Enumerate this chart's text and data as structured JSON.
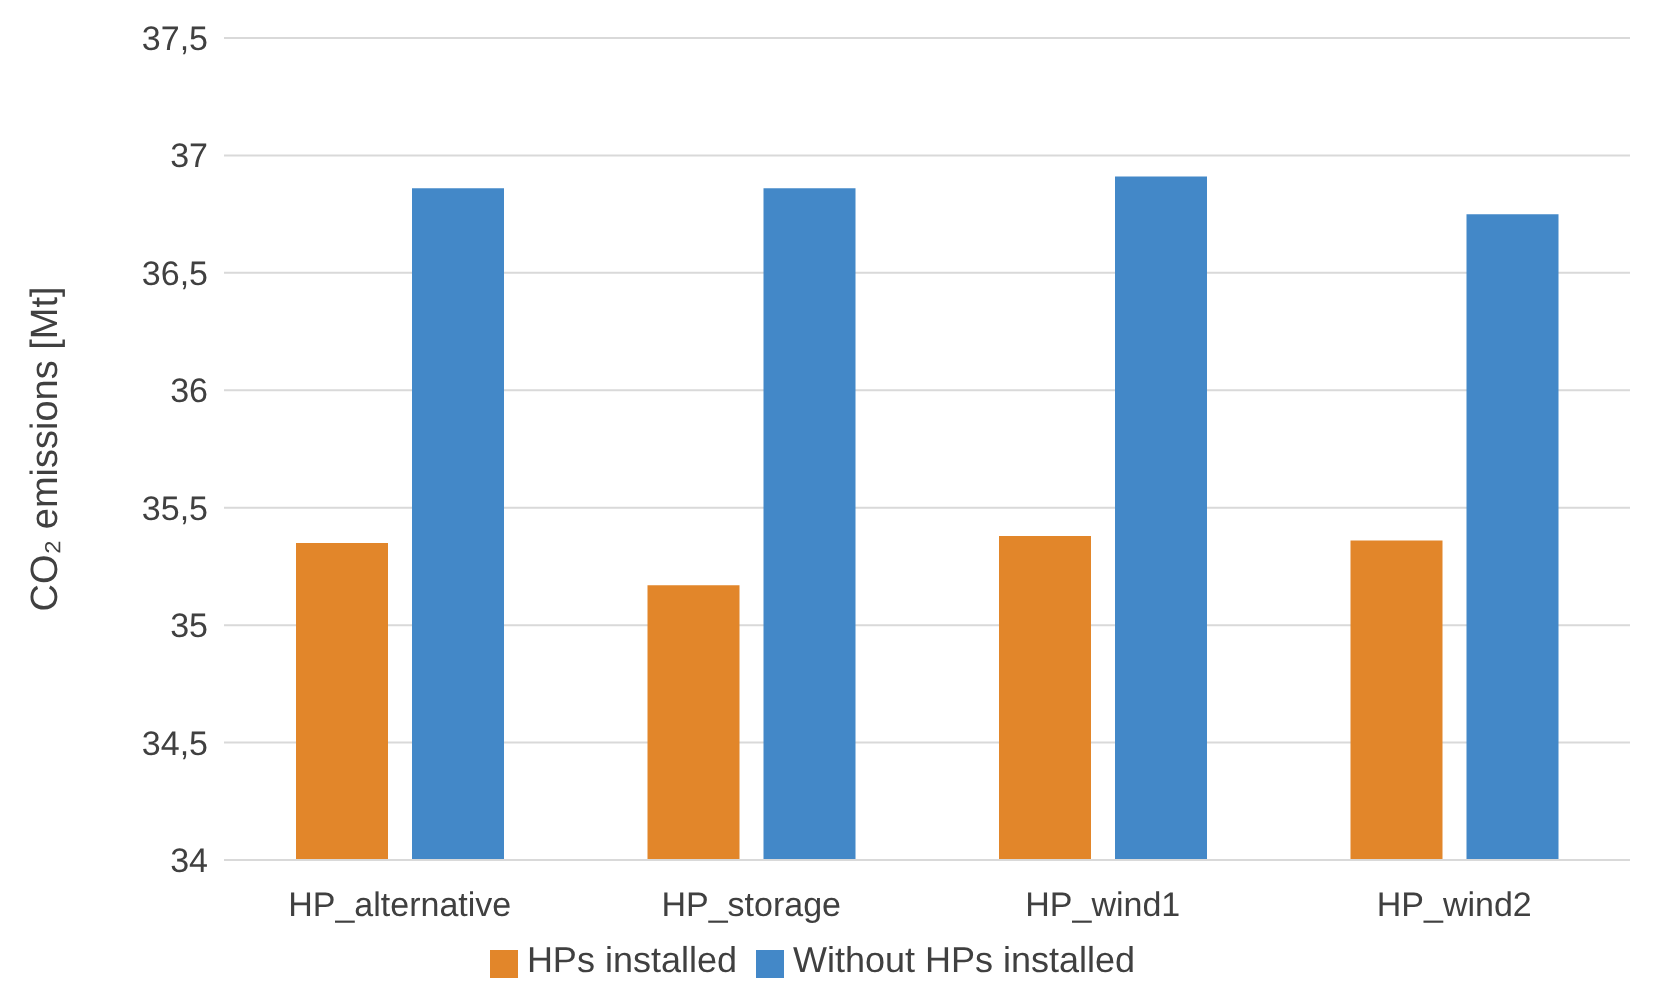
{
  "chart_data": {
    "type": "bar",
    "ylabel": "CO₂ emissions [Mt]",
    "categories": [
      "HP_alternative",
      "HP_storage",
      "HP_wind1",
      "HP_wind2"
    ],
    "series": [
      {
        "name": "HPs installed",
        "color": "#e2862a",
        "values": [
          35.35,
          35.17,
          35.38,
          35.36
        ]
      },
      {
        "name": "Without HPs installed",
        "color": "#4388c8",
        "values": [
          36.86,
          36.86,
          36.91,
          36.75
        ]
      }
    ],
    "ylim": [
      34,
      37.5
    ],
    "yticks": [
      34,
      {
        "value": 34.5,
        "label": "34,5"
      },
      35,
      {
        "value": 35.5,
        "label": "35,5"
      },
      36,
      {
        "value": 36.5,
        "label": "36,5"
      },
      37,
      {
        "value": 37.5,
        "label": "37,5"
      }
    ],
    "grid": "y",
    "legend": "bottom"
  }
}
